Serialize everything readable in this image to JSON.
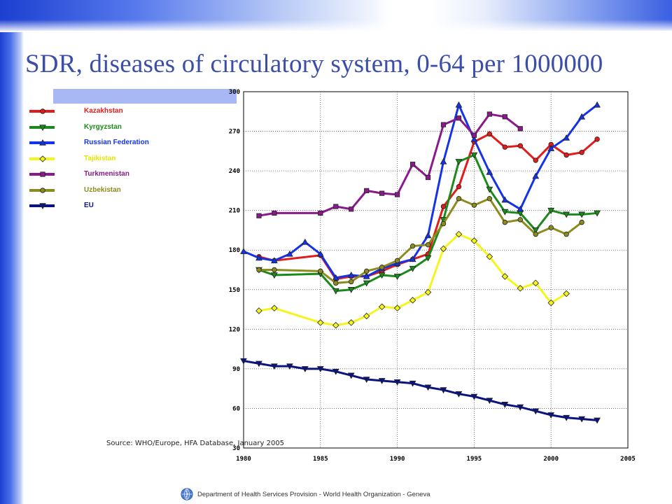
{
  "slide": {
    "title": "SDR, diseases of circulatory system, 0-64 per 1000000",
    "footer": "Department of Health Services Provision - World Health Organization - Geneva",
    "logo_icon": "who-emblem-icon",
    "source_note": "Source: WHO/Europe, HFA Database, January 2005"
  },
  "colors": {
    "title": "#3b4ea8",
    "accent_bar": "#2a4fe0",
    "legend_header": "#a8b8f4"
  },
  "chart_data": {
    "type": "line",
    "title": "",
    "xlabel": "",
    "ylabel": "",
    "xlim": [
      1980,
      2005
    ],
    "ylim": [
      30,
      300
    ],
    "x_ticks": [
      1980,
      1985,
      1990,
      1995,
      2000,
      2005
    ],
    "y_ticks": [
      30,
      60,
      90,
      120,
      150,
      180,
      210,
      240,
      270,
      300
    ],
    "grid": true,
    "legend_position": "left, outside plot",
    "series": [
      {
        "name": "Kazakhstan",
        "color": "#e21b1b",
        "marker": "circle",
        "x": [
          1981,
          1982,
          1985,
          1986,
          1987,
          1988,
          1989,
          1990,
          1991,
          1992,
          1993,
          1994,
          1995,
          1996,
          1997,
          1998,
          1999,
          2000,
          2001,
          2002,
          2003
        ],
        "y": [
          175,
          172,
          176,
          158,
          160,
          160,
          164,
          169,
          173,
          177,
          213,
          228,
          262,
          268,
          258,
          259,
          248,
          260,
          252,
          254,
          264
        ]
      },
      {
        "name": "Kyrgyzstan",
        "color": "#1a8a1a",
        "marker": "triangle-down",
        "x": [
          1981,
          1982,
          1985,
          1986,
          1987,
          1988,
          1989,
          1990,
          1991,
          1992,
          1993,
          1994,
          1995,
          1996,
          1997,
          1998,
          1999,
          2000,
          2001,
          2002,
          2003
        ],
        "y": [
          165,
          161,
          162,
          149,
          150,
          155,
          161,
          160,
          166,
          174,
          203,
          247,
          252,
          226,
          209,
          208,
          195,
          210,
          207,
          207,
          208
        ]
      },
      {
        "name": "Russian Federation",
        "color": "#1432e6",
        "marker": "triangle-up",
        "x": [
          1980,
          1981,
          1982,
          1983,
          1984,
          1985,
          1986,
          1987,
          1988,
          1989,
          1990,
          1991,
          1992,
          1993,
          1994,
          1995,
          1996,
          1997,
          1998,
          1999,
          2000,
          2001,
          2002,
          2003
        ],
        "y": [
          179,
          174,
          172,
          177,
          186,
          177,
          159,
          161,
          160,
          166,
          170,
          173,
          191,
          247,
          290,
          264,
          239,
          218,
          211,
          236,
          257,
          265,
          281,
          290
        ]
      },
      {
        "name": "Tajikistan",
        "color": "#f5f51e",
        "marker": "diamond",
        "x": [
          1981,
          1982,
          1985,
          1986,
          1987,
          1988,
          1989,
          1990,
          1991,
          1992,
          1993,
          1994,
          1995,
          1996,
          1997,
          1998,
          1999,
          2000,
          2001
        ],
        "y": [
          134,
          136,
          125,
          123,
          125,
          130,
          137,
          136,
          142,
          148,
          181,
          192,
          187,
          175,
          160,
          151,
          155,
          140,
          147
        ]
      },
      {
        "name": "Turkmenistan",
        "color": "#8a1a8a",
        "marker": "square",
        "x": [
          1981,
          1982,
          1985,
          1986,
          1987,
          1988,
          1989,
          1990,
          1991,
          1992,
          1993,
          1994,
          1995,
          1996,
          1997,
          1998
        ],
        "y": [
          206,
          208,
          208,
          213,
          211,
          225,
          223,
          222,
          245,
          235,
          275,
          280,
          267,
          283,
          281,
          272
        ]
      },
      {
        "name": "Uzbekistan",
        "color": "#8c8c1e",
        "marker": "circle",
        "x": [
          1981,
          1982,
          1985,
          1986,
          1987,
          1988,
          1989,
          1990,
          1991,
          1992,
          1993,
          1994,
          1995,
          1996,
          1997,
          1998,
          1999,
          2000,
          2001,
          2002
        ],
        "y": [
          165,
          165,
          164,
          155,
          156,
          164,
          167,
          172,
          183,
          184,
          200,
          219,
          214,
          219,
          201,
          203,
          192,
          197,
          192,
          201
        ]
      },
      {
        "name": "EU",
        "color": "#0a1480",
        "marker": "triangle-down",
        "x": [
          1980,
          1981,
          1982,
          1983,
          1984,
          1985,
          1986,
          1987,
          1988,
          1989,
          1990,
          1991,
          1992,
          1993,
          1994,
          1995,
          1996,
          1997,
          1998,
          1999,
          2000,
          2001,
          2002,
          2003
        ],
        "y": [
          96,
          94,
          92,
          92,
          90,
          90,
          88,
          85,
          82,
          81,
          80,
          79,
          76,
          74,
          71,
          69,
          66,
          63,
          61,
          58,
          55,
          53,
          52,
          51
        ]
      }
    ]
  }
}
